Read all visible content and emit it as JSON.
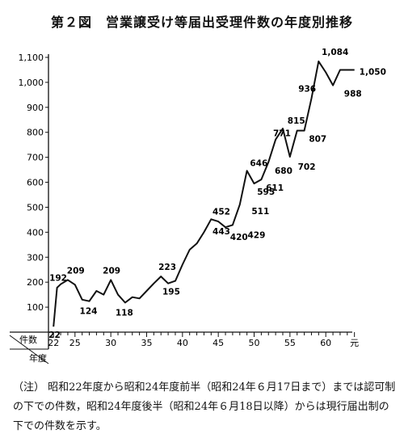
{
  "title": "第２図　営業譲受け等届出受理件数の年度別推移",
  "note": "（注） 昭和22年度から昭和24年度前半（昭和24年６月17日まで）までは認可制の下での件数，昭和24年度後半（昭和24年６月18日以降）からは現行届出制の下での件数を示す。",
  "corner_labels": {
    "top": "件数",
    "bottom": "年度"
  },
  "chart_data": {
    "type": "line",
    "title": "第２図　営業譲受け等届出受理件数の年度別推移",
    "xlabel": "年度",
    "ylabel": "件数",
    "xlim": [
      21.3,
      63.7
    ],
    "ylim": [
      0,
      1100
    ],
    "yticks": [
      100,
      200,
      300,
      400,
      500,
      600,
      700,
      800,
      900,
      1000,
      1100
    ],
    "ytick_labels": [
      "100",
      "200",
      "300",
      "400",
      "500",
      "600",
      "700",
      "800",
      "900",
      "1,000",
      "1,100"
    ],
    "xticks": [
      22,
      25,
      30,
      35,
      40,
      45,
      50,
      55,
      60,
      64
    ],
    "xtick_labels": [
      "22",
      "25",
      "30",
      "35",
      "40",
      "45",
      "50",
      "55",
      "60",
      "元"
    ],
    "grid": false,
    "series": [
      {
        "x": [
          22,
          22.5,
          23,
          24,
          25,
          26,
          27,
          28,
          29,
          30,
          31,
          32,
          33,
          34,
          35,
          36,
          37,
          38,
          39,
          40,
          41,
          42,
          43,
          44,
          45,
          46,
          47,
          48,
          49,
          50,
          51,
          52,
          53,
          54,
          55,
          56,
          57,
          58,
          59,
          60,
          61,
          62,
          63,
          64
        ],
        "y": [
          22,
          178,
          192,
          209,
          190,
          130,
          124,
          165,
          150,
          209,
          150,
          118,
          140,
          135,
          165,
          195,
          223,
          195,
          205,
          270,
          330,
          355,
          400,
          452,
          443,
          420,
          429,
          511,
          646,
          595,
          611,
          680,
          771,
          815,
          702,
          807,
          807,
          936,
          1084,
          1040,
          988,
          1050,
          1050,
          1050
        ]
      }
    ],
    "data_labels": [
      {
        "x": 22,
        "y": 22,
        "text": "22"
      },
      {
        "x": 23,
        "y": 192,
        "text": "192"
      },
      {
        "x": 25,
        "y": 209,
        "text": "209"
      },
      {
        "x": 27,
        "y": 124,
        "text": "124"
      },
      {
        "x": 30,
        "y": 209,
        "text": "209"
      },
      {
        "x": 32,
        "y": 118,
        "text": "118"
      },
      {
        "x": 38,
        "y": 223,
        "text": "223"
      },
      {
        "x": 39,
        "y": 195,
        "text": "195"
      },
      {
        "x": 46,
        "y": 452,
        "text": "452"
      },
      {
        "x": 46,
        "y": 443,
        "text": "443"
      },
      {
        "x": 48,
        "y": 420,
        "text": "420"
      },
      {
        "x": 50,
        "y": 429,
        "text": "429"
      },
      {
        "x": 51,
        "y": 511,
        "text": "511"
      },
      {
        "x": 51,
        "y": 646,
        "text": "646"
      },
      {
        "x": 52,
        "y": 595,
        "text": "595"
      },
      {
        "x": 53,
        "y": 611,
        "text": "611"
      },
      {
        "x": 54,
        "y": 680,
        "text": "680"
      },
      {
        "x": 54,
        "y": 771,
        "text": "771"
      },
      {
        "x": 56,
        "y": 815,
        "text": "815"
      },
      {
        "x": 57,
        "y": 702,
        "text": "702"
      },
      {
        "x": 59,
        "y": 807,
        "text": "807"
      },
      {
        "x": 60,
        "y": 936,
        "text": "936"
      },
      {
        "x": 61,
        "y": 1084,
        "text": "1,084"
      },
      {
        "x": 63,
        "y": 988,
        "text": "988"
      },
      {
        "x": 64,
        "y": 1050,
        "text": "1,050"
      }
    ]
  }
}
